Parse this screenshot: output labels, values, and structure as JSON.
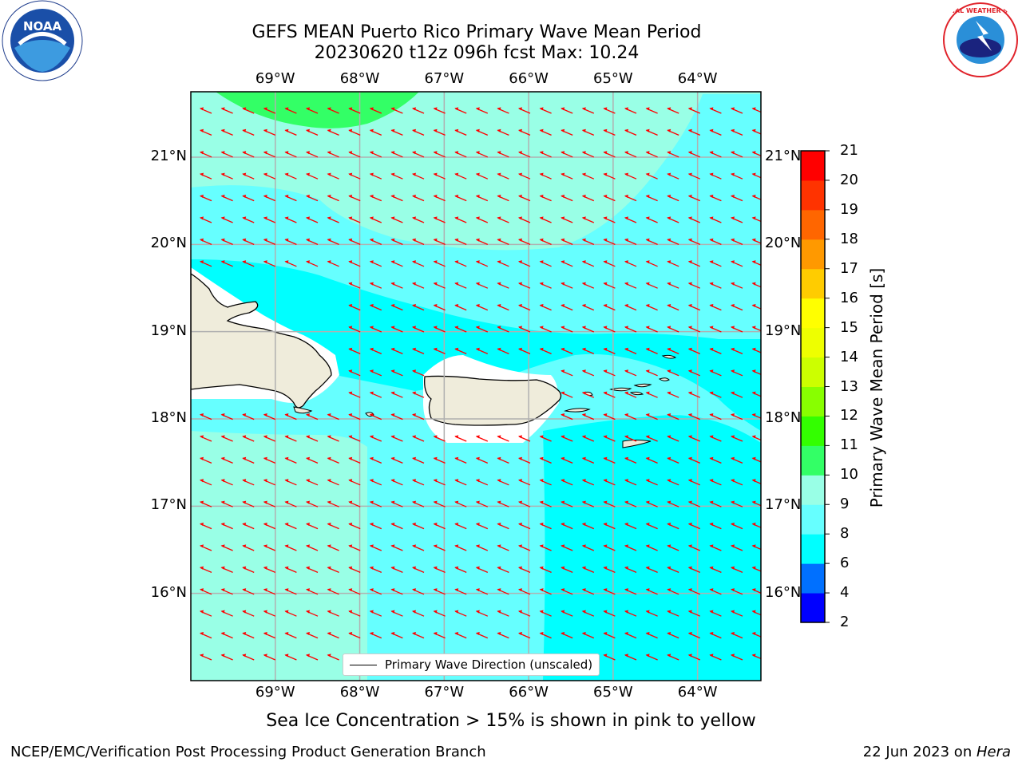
{
  "title_line1": "GEFS MEAN Puerto Rico Primary Wave Mean Period",
  "title_line2": "20230620 t12z 096h fcst   Max: 10.24",
  "lon_ticks": [
    "69°W",
    "68°W",
    "67°W",
    "66°W",
    "65°W",
    "64°W"
  ],
  "lat_ticks": [
    "21°N",
    "20°N",
    "19°N",
    "18°N",
    "17°N",
    "16°N"
  ],
  "legend_label": "Primary Wave Direction (unscaled)",
  "colorbar": {
    "label": "Primary Wave Mean Period [s]",
    "ticks": [
      "21",
      "20",
      "19",
      "18",
      "17",
      "16",
      "15",
      "14",
      "13",
      "12",
      "11",
      "10",
      "9",
      "8",
      "6",
      "4",
      "2"
    ],
    "colors": [
      "#0000ff",
      "#0070ff",
      "#00ffff",
      "#66ffff",
      "#99ffe6",
      "#33ff66",
      "#33ff00",
      "#88ff00",
      "#ccff00",
      "#eeff00",
      "#ffff00",
      "#ffcc00",
      "#ff9900",
      "#ff6600",
      "#ff3300",
      "#ff0000"
    ]
  },
  "caption": "Sea Ice Concentration > 15% is shown in pink to yellow",
  "footer_left": "NCEP/EMC/Verification Post Processing Product Generation Branch",
  "footer_right_prefix": "22 Jun 2023 on ",
  "footer_right_host": "Hera",
  "logos": {
    "left": "NOAA",
    "right": "NATIONAL WEATHER SERVICE"
  },
  "field_colors": {
    "land": "#efecdb",
    "arrow": "#ff0000",
    "sea_6_8": "#00ffff",
    "sea_8_9": "#66ffff",
    "sea_9_10": "#99ffe6",
    "sea_10_11": "#33ff66"
  },
  "chart_data": {
    "type": "heatmap",
    "title": "GEFS MEAN Puerto Rico Primary Wave Mean Period",
    "subtitle": "20230620 t12z 096h fcst   Max: 10.24",
    "max": 10.24,
    "lon_range": [
      -70.0,
      -63.25
    ],
    "lat_range": [
      15.0,
      21.75
    ],
    "levels": [
      2,
      4,
      6,
      8,
      9,
      10,
      11,
      12,
      13,
      14,
      15,
      16,
      17,
      18,
      19,
      20,
      21
    ],
    "colorbar_label": "Primary Wave Mean Period [s]",
    "vector_field": "Primary Wave Direction (unscaled)",
    "vector_direction": "toward west-northwest"
  }
}
